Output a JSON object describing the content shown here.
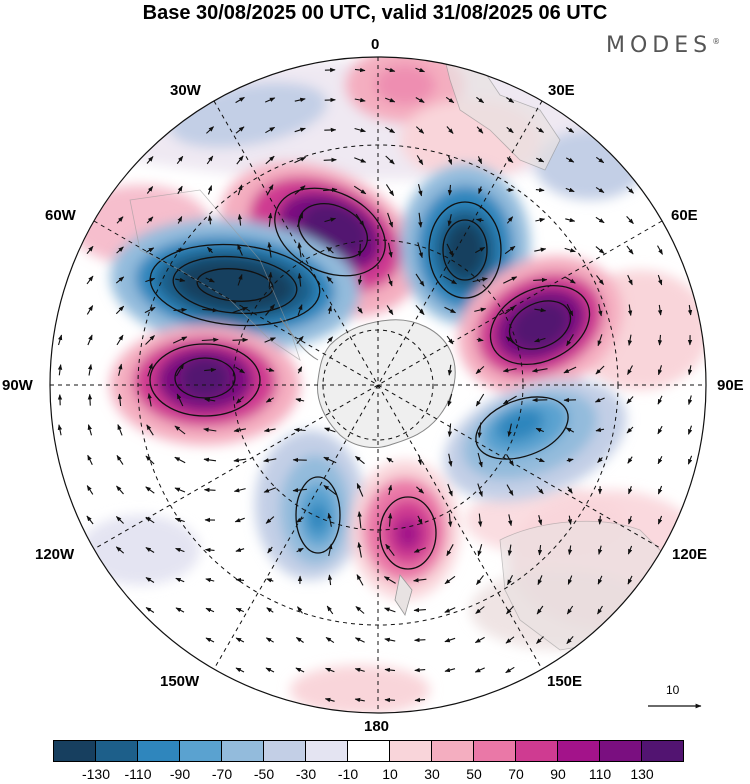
{
  "title": "Base 30/08/2025 00 UTC, valid 31/08/2025 06 UTC",
  "brand": "MODES",
  "brand_mark": "®",
  "lon_labels": {
    "n0": "0",
    "e30": "30E",
    "e60": "60E",
    "e90": "90E",
    "e120": "120E",
    "e150": "150E",
    "s180": "180",
    "w150": "150W",
    "w120": "120W",
    "w90": "90W",
    "w60": "60W",
    "w30": "30W"
  },
  "reference_vector": "10",
  "colorbar": {
    "colors": [
      "#173f5f",
      "#1d5f8a",
      "#2f86bd",
      "#5aa2d0",
      "#93bbdc",
      "#c3cfe6",
      "#e4e4f2",
      "#ffffff",
      "#f9d5da",
      "#f4aec0",
      "#ea78a7",
      "#cf3b91",
      "#a3138a",
      "#7a0f80",
      "#521471"
    ],
    "tick_labels": [
      "-130",
      "-110",
      "-90",
      "-70",
      "-50",
      "-30",
      "-10",
      "10",
      "30",
      "50",
      "70",
      "90",
      "110",
      "130"
    ]
  }
}
